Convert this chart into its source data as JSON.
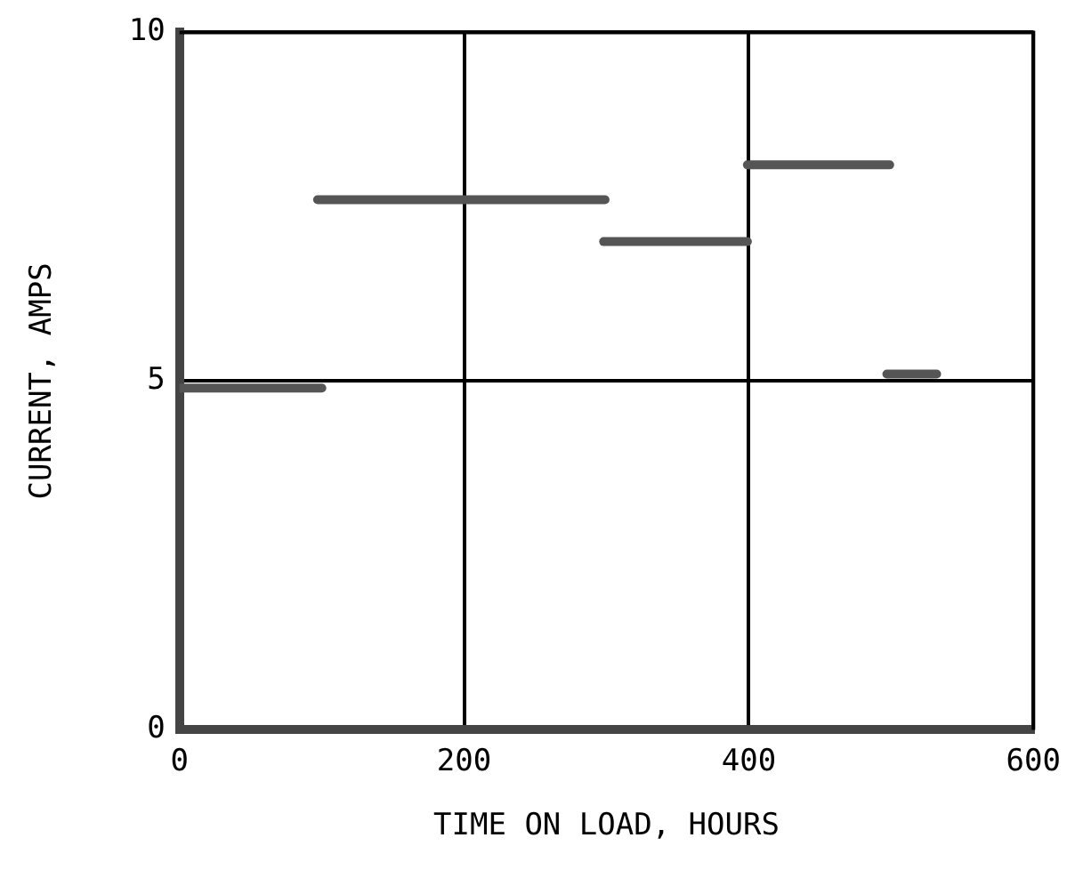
{
  "chart_data": {
    "type": "line",
    "xlabel": "TIME ON LOAD, HOURS",
    "ylabel": "CURRENT, AMPS",
    "xlim": [
      0,
      600
    ],
    "xticks": [
      0,
      200,
      400,
      600
    ],
    "ylim": [
      0,
      10
    ],
    "yticks": [
      0,
      5,
      10
    ],
    "grid": true,
    "marker": "none",
    "line_style": "solid",
    "series": [
      {
        "color": "#555555",
        "x": [
          0,
          100
        ],
        "values": [
          4.9,
          4.9
        ]
      },
      {
        "color": "#555555",
        "x": [
          97,
          299
        ],
        "values": [
          7.6,
          7.6
        ]
      },
      {
        "color": "#555555",
        "x": [
          298,
          399
        ],
        "values": [
          7.0,
          7.0
        ]
      },
      {
        "color": "#555555",
        "x": [
          399,
          499
        ],
        "values": [
          8.1,
          8.1
        ]
      },
      {
        "color": "#555555",
        "x": [
          497,
          532
        ],
        "values": [
          5.1,
          5.1
        ]
      }
    ]
  }
}
